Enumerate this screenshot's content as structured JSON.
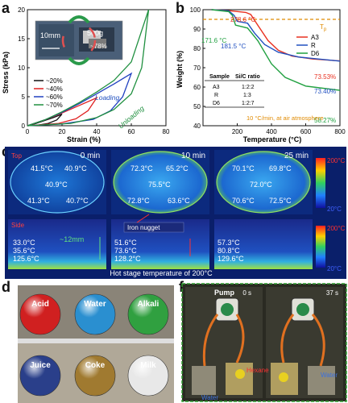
{
  "panels": {
    "a": "a",
    "b": "b",
    "c": "c",
    "d": "d",
    "f": "f"
  },
  "chart_a": {
    "type": "line",
    "xlabel": "Strain (%)",
    "ylabel": "Stress (kPa)",
    "xlim": [
      0,
      80
    ],
    "ylim": [
      0,
      20
    ],
    "xticks": [
      "0",
      "20",
      "40",
      "60",
      "80"
    ],
    "yticks": [
      "0",
      "5",
      "10",
      "15",
      "20"
    ],
    "inset_labels": {
      "scale": "10mm",
      "weight": "500g",
      "strain": "~78%"
    },
    "annotations": {
      "loading": "Loading",
      "unloading": "Unloading"
    },
    "legend": [
      "~20%",
      "~40%",
      "~60%",
      "~70%"
    ],
    "colors": [
      "#111111",
      "#e02020",
      "#2040c0",
      "#209040"
    ],
    "series": [
      {
        "name": "~20%",
        "color": "#111111",
        "loading": [
          [
            0,
            0
          ],
          [
            5,
            0.4
          ],
          [
            10,
            0.9
          ],
          [
            15,
            1.4
          ],
          [
            20,
            2.0
          ]
        ],
        "unloading": [
          [
            20,
            2.0
          ],
          [
            17,
            1.0
          ],
          [
            12,
            0.4
          ],
          [
            6,
            0.1
          ],
          [
            0,
            0
          ]
        ]
      },
      {
        "name": "~40%",
        "color": "#e02020",
        "loading": [
          [
            0,
            0
          ],
          [
            10,
            1.0
          ],
          [
            20,
            2.2
          ],
          [
            30,
            3.5
          ],
          [
            40,
            4.8
          ]
        ],
        "unloading": [
          [
            40,
            4.8
          ],
          [
            35,
            2.6
          ],
          [
            28,
            1.2
          ],
          [
            18,
            0.4
          ],
          [
            0,
            0
          ]
        ]
      },
      {
        "name": "~60%",
        "color": "#2040c0",
        "loading": [
          [
            0,
            0
          ],
          [
            10,
            1.0
          ],
          [
            20,
            2.3
          ],
          [
            30,
            3.8
          ],
          [
            40,
            5.5
          ],
          [
            50,
            7.2
          ],
          [
            60,
            9.0
          ]
        ],
        "unloading": [
          [
            60,
            9.0
          ],
          [
            55,
            5.0
          ],
          [
            48,
            2.6
          ],
          [
            38,
            1.1
          ],
          [
            20,
            0.3
          ],
          [
            0,
            0
          ]
        ]
      },
      {
        "name": "~70%",
        "color": "#209040",
        "loading": [
          [
            0,
            0
          ],
          [
            10,
            1.0
          ],
          [
            20,
            2.4
          ],
          [
            30,
            4.0
          ],
          [
            40,
            5.8
          ],
          [
            50,
            7.8
          ],
          [
            60,
            11.0
          ],
          [
            70,
            20.0
          ]
        ],
        "unloading": [
          [
            70,
            20.0
          ],
          [
            66,
            10.0
          ],
          [
            60,
            5.5
          ],
          [
            50,
            2.8
          ],
          [
            40,
            1.4
          ],
          [
            25,
            0.4
          ],
          [
            0,
            0
          ]
        ]
      }
    ]
  },
  "chart_b": {
    "type": "line",
    "xlabel": "Temperature (°C)",
    "ylabel": "Weight (%)",
    "xlim": [
      0,
      800
    ],
    "ylim": [
      40,
      100
    ],
    "xticks": [
      "200",
      "400",
      "600",
      "800"
    ],
    "yticks": [
      "40",
      "50",
      "60",
      "70",
      "80",
      "90",
      "100"
    ],
    "legend": [
      "A3",
      "R",
      "D6"
    ],
    "tp_label": "T",
    "tp_sub": "p",
    "annotations": {
      "t1": "278.6 °C",
      "t2": "171.6 °C",
      "t3": "181.5 °C",
      "r1": "73.53%",
      "r2": "73.40%",
      "r3": "58.27%",
      "rate": "10 °C/min, at air atmosphere"
    },
    "table": {
      "headers": [
        "Sample",
        "Si/C ratio"
      ],
      "rows": [
        [
          "A3",
          "1:2:2"
        ],
        [
          "R",
          "1:3"
        ],
        [
          "D6",
          "1:2:7"
        ]
      ]
    },
    "dashed_y": 95,
    "series": [
      {
        "name": "A3",
        "color": "#e83020",
        "points": [
          [
            50,
            100
          ],
          [
            150,
            99.5
          ],
          [
            250,
            98.6
          ],
          [
            279,
            97.5
          ],
          [
            320,
            92
          ],
          [
            380,
            84
          ],
          [
            440,
            79
          ],
          [
            520,
            76
          ],
          [
            640,
            74.5
          ],
          [
            800,
            73.5
          ]
        ]
      },
      {
        "name": "R",
        "color": "#2050c0",
        "points": [
          [
            50,
            100
          ],
          [
            150,
            99.4
          ],
          [
            182,
            97
          ],
          [
            200,
            94
          ],
          [
            260,
            93
          ],
          [
            300,
            88
          ],
          [
            360,
            82
          ],
          [
            440,
            78
          ],
          [
            560,
            75.5
          ],
          [
            800,
            73.4
          ]
        ]
      },
      {
        "name": "D6",
        "color": "#20a040",
        "points": [
          [
            50,
            100
          ],
          [
            150,
            99
          ],
          [
            172,
            97
          ],
          [
            190,
            92
          ],
          [
            260,
            90.5
          ],
          [
            320,
            84
          ],
          [
            400,
            72
          ],
          [
            480,
            65
          ],
          [
            600,
            60.5
          ],
          [
            800,
            58.3
          ]
        ]
      }
    ]
  },
  "panel_c": {
    "times": [
      "0 min",
      "10 min",
      "25 min"
    ],
    "top_label": "Top",
    "side_label": "Side",
    "grid_temps": [
      [
        "41.5°C",
        "40.9°C",
        "40.9°C",
        "41.3°C",
        "40.7°C"
      ],
      [
        "72.3°C",
        "65.2°C",
        "75.5°C",
        "72.8°C",
        "63.6°C"
      ],
      [
        "70.1°C",
        "69.8°C",
        "72.0°C",
        "70.6°C",
        "72.5°C"
      ]
    ],
    "side_temps": [
      [
        "33.0°C",
        "35.6°C",
        "125.6°C"
      ],
      [
        "51.6°C",
        "73.6°C",
        "128.2°C"
      ],
      [
        "57.3°C",
        "80.8°C",
        "129.6°C"
      ]
    ],
    "colorbar_max": "200°C",
    "colorbar_min": "20°C",
    "thickness": "~12mm",
    "iron": "Iron nugget",
    "hot_stage": "Hot stage temperature of 200°C"
  },
  "panel_d": {
    "liquids": [
      {
        "label": "Acid",
        "color": "#d02020"
      },
      {
        "label": "Water",
        "color": "#2a8fd0"
      },
      {
        "label": "Alkali",
        "color": "#30a040"
      },
      {
        "label": "Juice",
        "color": "#2a3f8a"
      },
      {
        "label": "Coke",
        "color": "#a07a30"
      },
      {
        "label": "Milk",
        "color": "#e8e8e8"
      }
    ]
  },
  "panel_f": {
    "pump": "Pump",
    "t0": "0 s",
    "t1": "37 s",
    "hexane": "Hexane",
    "water1": "Water",
    "water2": "Water"
  }
}
